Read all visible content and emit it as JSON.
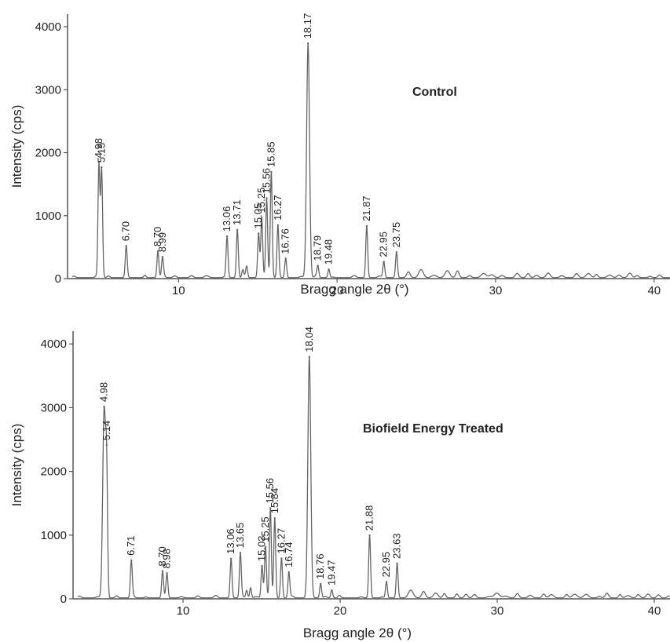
{
  "chart_data": [
    {
      "type": "line",
      "title": "Control",
      "xlabel": "Bragg angle 2θ (°)",
      "ylabel": "Intensity (cps)",
      "xlim": [
        3,
        41
      ],
      "ylim": [
        0,
        4200
      ],
      "x_ticks": [
        "10",
        "20",
        "30",
        "40"
      ],
      "y_ticks": [
        "0",
        "1000",
        "2000",
        "3000",
        "4000"
      ],
      "grid": false,
      "peaks": [
        {
          "label": "4.98",
          "x": 4.98,
          "y": 1780
        },
        {
          "label": "5.15",
          "x": 5.15,
          "y": 1720
        },
        {
          "label": "6.70",
          "x": 6.7,
          "y": 480
        },
        {
          "label": "8.70",
          "x": 8.7,
          "y": 420
        },
        {
          "label": "8.99",
          "x": 8.99,
          "y": 300
        },
        {
          "label": "13.06",
          "x": 13.06,
          "y": 650
        },
        {
          "label": "13.71",
          "x": 13.71,
          "y": 760
        },
        {
          "label": "15.05",
          "x": 15.05,
          "y": 700
        },
        {
          "label": "15.25",
          "x": 15.25,
          "y": 950
        },
        {
          "label": "15.56",
          "x": 15.56,
          "y": 1250
        },
        {
          "label": "15.85",
          "x": 15.85,
          "y": 1680
        },
        {
          "label": "16.27",
          "x": 16.27,
          "y": 820
        },
        {
          "label": "16.76",
          "x": 16.76,
          "y": 300
        },
        {
          "label": "18.17",
          "x": 18.17,
          "y": 3720
        },
        {
          "label": "18.79",
          "x": 18.79,
          "y": 180
        },
        {
          "label": "19.48",
          "x": 19.48,
          "y": 130
        },
        {
          "label": "21.87",
          "x": 21.87,
          "y": 820
        },
        {
          "label": "22.95",
          "x": 22.95,
          "y": 250
        },
        {
          "label": "23.75",
          "x": 23.75,
          "y": 400
        }
      ]
    },
    {
      "type": "line",
      "title": "Biofield Energy Treated",
      "xlabel": "Bragg angle 2θ (°)",
      "ylabel": "Intensity (cps)",
      "xlim": [
        3,
        41
      ],
      "ylim": [
        0,
        4200
      ],
      "x_ticks": [
        "10",
        "20",
        "30",
        "40"
      ],
      "y_ticks": [
        "0",
        "1000",
        "2000",
        "3000",
        "4000"
      ],
      "grid": false,
      "peaks": [
        {
          "label": "4.98",
          "x": 4.98,
          "y": 2950
        },
        {
          "label": "5.14",
          "x": 5.14,
          "y": 1750
        },
        {
          "label": "6.71",
          "x": 6.71,
          "y": 580
        },
        {
          "label": "8.70",
          "x": 8.7,
          "y": 420
        },
        {
          "label": "8.98",
          "x": 8.98,
          "y": 360
        },
        {
          "label": "13.06",
          "x": 13.06,
          "y": 580
        },
        {
          "label": "13.65",
          "x": 13.65,
          "y": 700
        },
        {
          "label": "15.03",
          "x": 15.03,
          "y": 500
        },
        {
          "label": "15.25",
          "x": 15.25,
          "y": 800
        },
        {
          "label": "15.56",
          "x": 15.56,
          "y": 1400
        },
        {
          "label": "15.84",
          "x": 15.84,
          "y": 1250
        },
        {
          "label": "16.27",
          "x": 16.27,
          "y": 620
        },
        {
          "label": "16.74",
          "x": 16.74,
          "y": 400
        },
        {
          "label": "18.04",
          "x": 18.04,
          "y": 3750
        },
        {
          "label": "18.76",
          "x": 18.76,
          "y": 220
        },
        {
          "label": "19.47",
          "x": 19.47,
          "y": 120
        },
        {
          "label": "21.88",
          "x": 21.88,
          "y": 980
        },
        {
          "label": "22.95",
          "x": 22.95,
          "y": 250
        },
        {
          "label": "23.63",
          "x": 23.63,
          "y": 540
        }
      ]
    }
  ]
}
